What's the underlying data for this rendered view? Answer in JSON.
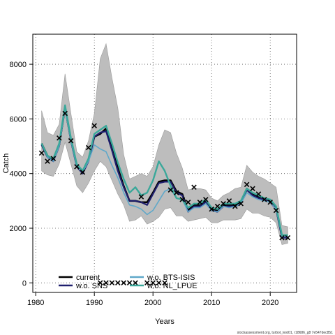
{
  "chart_data": {
    "type": "line",
    "xlabel": "Years",
    "ylabel": "Catch",
    "xlim": [
      1979.5,
      2024.5
    ],
    "ylim": [
      -350,
      9100
    ],
    "x_ticks": [
      1980,
      1990,
      2000,
      2010,
      2020
    ],
    "y_ticks": [
      0,
      2000,
      4000,
      6000,
      8000
    ],
    "grid": true,
    "legend_position": "bottom-left",
    "legend": [
      "current",
      "w.o. SNS",
      "w.o. BTS-ISIS",
      "w.o. NL_LPUE"
    ],
    "x": [
      1981,
      1982,
      1983,
      1984,
      1985,
      1986,
      1987,
      1988,
      1989,
      1990,
      1991,
      1992,
      1993,
      1994,
      1995,
      1996,
      1997,
      1998,
      1999,
      2000,
      2001,
      2002,
      2003,
      2004,
      2005,
      2006,
      2007,
      2008,
      2009,
      2010,
      2011,
      2012,
      2013,
      2014,
      2015,
      2016,
      2017,
      2018,
      2019,
      2020,
      2021,
      2022,
      2023
    ],
    "confidence_band": {
      "name": "current",
      "lower": [
        4100,
        3950,
        3900,
        4350,
        5150,
        4350,
        3550,
        3300,
        3650,
        4100,
        4450,
        4250,
        3750,
        3250,
        2850,
        2250,
        2300,
        2450,
        2150,
        2250,
        2400,
        2700,
        2750,
        2450,
        2450,
        2250,
        2300,
        2350,
        2400,
        2200,
        2200,
        2300,
        2300,
        2300,
        2350,
        2700,
        2550,
        2550,
        2450,
        2400,
        2200,
        1400,
        1450
      ],
      "upper": [
        6300,
        5500,
        5400,
        5800,
        7650,
        6200,
        4800,
        4600,
        5200,
        6200,
        8200,
        8750,
        7500,
        6400,
        4700,
        3800,
        3900,
        4000,
        3900,
        4250,
        5050,
        5600,
        5500,
        4750,
        4200,
        3400,
        3450,
        3450,
        3400,
        3100,
        3000,
        3200,
        3300,
        3450,
        3500,
        4300,
        4050,
        3900,
        3800,
        3650,
        3500,
        2100,
        2050
      ]
    },
    "series": [
      {
        "name": "current",
        "color": "#000000",
        "values": [
          5100,
          4650,
          4500,
          5050,
          6400,
          5250,
          4300,
          4050,
          4500,
          5350,
          5450,
          5650,
          4950,
          4200,
          3550,
          3000,
          3000,
          2950,
          2950,
          3300,
          3700,
          3750,
          3750,
          3350,
          3250,
          2650,
          2850,
          2850,
          3000,
          2700,
          2650,
          2850,
          2850,
          2850,
          2950,
          3450,
          3250,
          3150,
          3100,
          3000,
          2750,
          1700,
          1700
        ]
      },
      {
        "name": "w.o. SNS",
        "color": "#1f1f6e",
        "values": [
          5050,
          4600,
          4450,
          5000,
          6450,
          5200,
          4250,
          4000,
          4450,
          5350,
          5500,
          5550,
          4850,
          4100,
          3500,
          3000,
          3000,
          2950,
          2850,
          3250,
          3650,
          3700,
          3700,
          3300,
          3200,
          2600,
          2800,
          2800,
          2950,
          2650,
          2600,
          2800,
          2800,
          2800,
          2900,
          3400,
          3200,
          3100,
          3050,
          2950,
          2700,
          1650,
          1650
        ]
      },
      {
        "name": "w.o. BTS-ISIS",
        "color": "#5fa8c9",
        "values": [
          5100,
          4600,
          4450,
          5000,
          6350,
          5200,
          4250,
          4050,
          4450,
          5050,
          4900,
          4800,
          4300,
          3850,
          3300,
          2850,
          2800,
          2700,
          2500,
          2650,
          3000,
          3350,
          3450,
          3100,
          3050,
          2600,
          2750,
          2750,
          2900,
          2650,
          2600,
          2800,
          2750,
          2800,
          2900,
          3300,
          3150,
          3050,
          3000,
          2950,
          2700,
          1700,
          1700
        ]
      },
      {
        "name": "w.o. NL_LPUE",
        "color": "#3aa89a",
        "values": [
          5100,
          4650,
          4550,
          5100,
          6500,
          5300,
          4350,
          4100,
          4550,
          5450,
          5600,
          5750,
          5100,
          4400,
          3800,
          3300,
          3500,
          3200,
          3300,
          3750,
          4450,
          4100,
          3550,
          3100,
          3050,
          2750,
          2900,
          2900,
          3050,
          2750,
          2700,
          2900,
          2900,
          2900,
          3000,
          3450,
          3300,
          3200,
          3100,
          3050,
          2800,
          1750,
          1750
        ]
      }
    ],
    "observations": {
      "marker": "x",
      "x": [
        1981,
        1982,
        1983,
        1984,
        1985,
        1986,
        1987,
        1988,
        1989,
        1990,
        1991,
        1992,
        1993,
        1994,
        1995,
        1996,
        1997,
        1998,
        1999,
        2000,
        2001,
        2002,
        2003,
        2004,
        2005,
        2006,
        2007,
        2008,
        2009,
        2010,
        2011,
        2012,
        2013,
        2014,
        2015,
        2016,
        2017,
        2018,
        2019,
        2020,
        2021,
        2022,
        2023
      ],
      "y": [
        4750,
        4450,
        4550,
        5300,
        6200,
        5200,
        4250,
        4050,
        4950,
        5750,
        0,
        0,
        0,
        0,
        0,
        0,
        0,
        3150,
        0,
        0,
        0,
        0,
        3400,
        3300,
        3050,
        2950,
        3500,
        2950,
        3050,
        2700,
        2800,
        2900,
        3000,
        2800,
        2900,
        3600,
        3450,
        3250,
        3050,
        2950,
        2650,
        1650,
        1650
      ]
    }
  },
  "footer": "stockassessment.org, turbot_test01, r18686_g8 7e547dec851"
}
